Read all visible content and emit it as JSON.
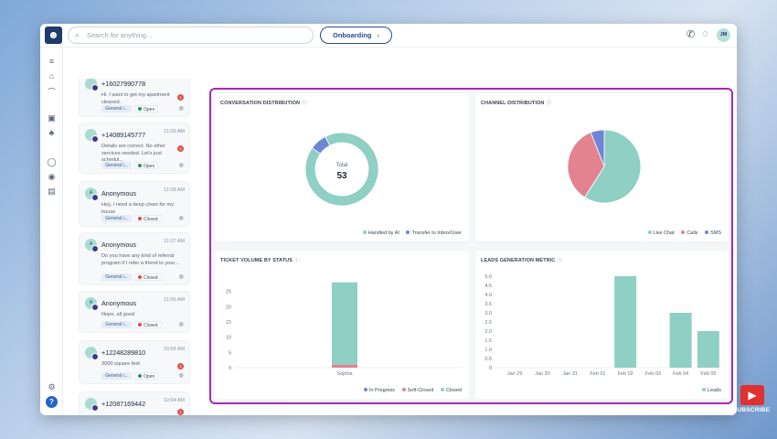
{
  "header": {
    "search_placeholder": "Search for anything...",
    "onboarding_label": "Onboarding",
    "avatar_initials": "JM"
  },
  "conversations": [
    {
      "name": "+16027990778",
      "time": "",
      "message": "Hi. I want to get my apartment cleaned.",
      "tag": "General i...",
      "status": "Open",
      "status_color": "#2f8f6f",
      "unread": "1"
    },
    {
      "name": "+14089145777",
      "time": "11:09 AM",
      "message": "Details are correct. No other services needed. Let's just schedul...",
      "tag": "General i...",
      "status": "Open",
      "status_color": "#2f8f6f",
      "unread": "1"
    },
    {
      "name": "Anonymous",
      "time": "11:08 AM",
      "message": "Hey, I need a deep clean for my house",
      "tag": "General i...",
      "status": "Closed",
      "status_color": "#d84a4a",
      "unread": ""
    },
    {
      "name": "Anonymous",
      "time": "11:07 AM",
      "message": "Do you have any kind of referral program if I refer a friend to your...",
      "tag": "General i...",
      "status": "Closed",
      "status_color": "#d84a4a",
      "unread": ""
    },
    {
      "name": "Anonymous",
      "time": "11:06 AM",
      "message": "Nope, all good",
      "tag": "General i...",
      "status": "Closed",
      "status_color": "#d84a4a",
      "unread": ""
    },
    {
      "name": "+12248289810",
      "time": "10:58 AM",
      "message": "3000 square feet",
      "tag": "General i...",
      "status": "Open",
      "status_color": "#2f8f6f",
      "unread": "1"
    },
    {
      "name": "+12087169442",
      "time": "10:54 AM",
      "message": "",
      "tag": "",
      "status": "",
      "status_color": "#2f8f6f",
      "unread": "1"
    }
  ],
  "dashboard": {
    "conversation_distribution": {
      "title": "CONVERSATION DISTRIBUTION",
      "total_label": "Total",
      "total_value": "53",
      "legend": [
        "Handled by AI",
        "Transfer to Inbox/User"
      ]
    },
    "channel_distribution": {
      "title": "CHANNEL DISTRIBUTION",
      "legend": [
        "Live Chat",
        "Calls",
        "SMS"
      ]
    },
    "ticket_volume": {
      "title": "TICKET VOLUME BY STATUS",
      "legend": [
        "In Progress",
        "Soft-Closed",
        "Closed"
      ]
    },
    "leads_generation": {
      "title": "LEADS GENERATION METRIC",
      "legend": [
        "Leads"
      ]
    }
  },
  "colors": {
    "teal": "#8fcfc4",
    "pink": "#e3838f",
    "blue": "#6f86d6",
    "accent_border": "#a22bb5"
  },
  "youtube": {
    "subscribe_label": "SUBSCRIBE"
  },
  "chart_data": [
    {
      "type": "pie",
      "title": "CONVERSATION DISTRIBUTION",
      "categories": [
        "Handled by AI",
        "Transfer to Inbox/User"
      ],
      "values": [
        49,
        4
      ],
      "total": 53
    },
    {
      "type": "pie",
      "title": "CHANNEL DISTRIBUTION",
      "categories": [
        "Live Chat",
        "Calls",
        "SMS"
      ],
      "values": [
        59,
        35,
        6
      ]
    },
    {
      "type": "bar",
      "title": "TICKET VOLUME BY STATUS",
      "categories": [
        "Sophia"
      ],
      "series": [
        {
          "name": "In Progress",
          "values": [
            0
          ]
        },
        {
          "name": "Soft-Closed",
          "values": [
            1
          ]
        },
        {
          "name": "Closed",
          "values": [
            27
          ]
        }
      ],
      "yticks": [
        0,
        5,
        10,
        15,
        20,
        25
      ],
      "ylim": [
        0,
        30
      ]
    },
    {
      "type": "bar",
      "title": "LEADS GENERATION METRIC",
      "categories": [
        "Jan 29",
        "Jan 30",
        "Jan 31",
        "Feb 01",
        "Feb 02",
        "Feb 03",
        "Feb 04",
        "Feb 05"
      ],
      "series": [
        {
          "name": "Leads",
          "values": [
            0,
            0,
            0,
            0,
            5,
            0,
            3,
            2
          ]
        }
      ],
      "yticks": [
        "0",
        "0.5",
        "1.0",
        "1.5",
        "2.0",
        "2.5",
        "3.0",
        "3.5",
        "4.0",
        "4.5",
        "5.0"
      ],
      "ylim": [
        0,
        5
      ]
    }
  ]
}
